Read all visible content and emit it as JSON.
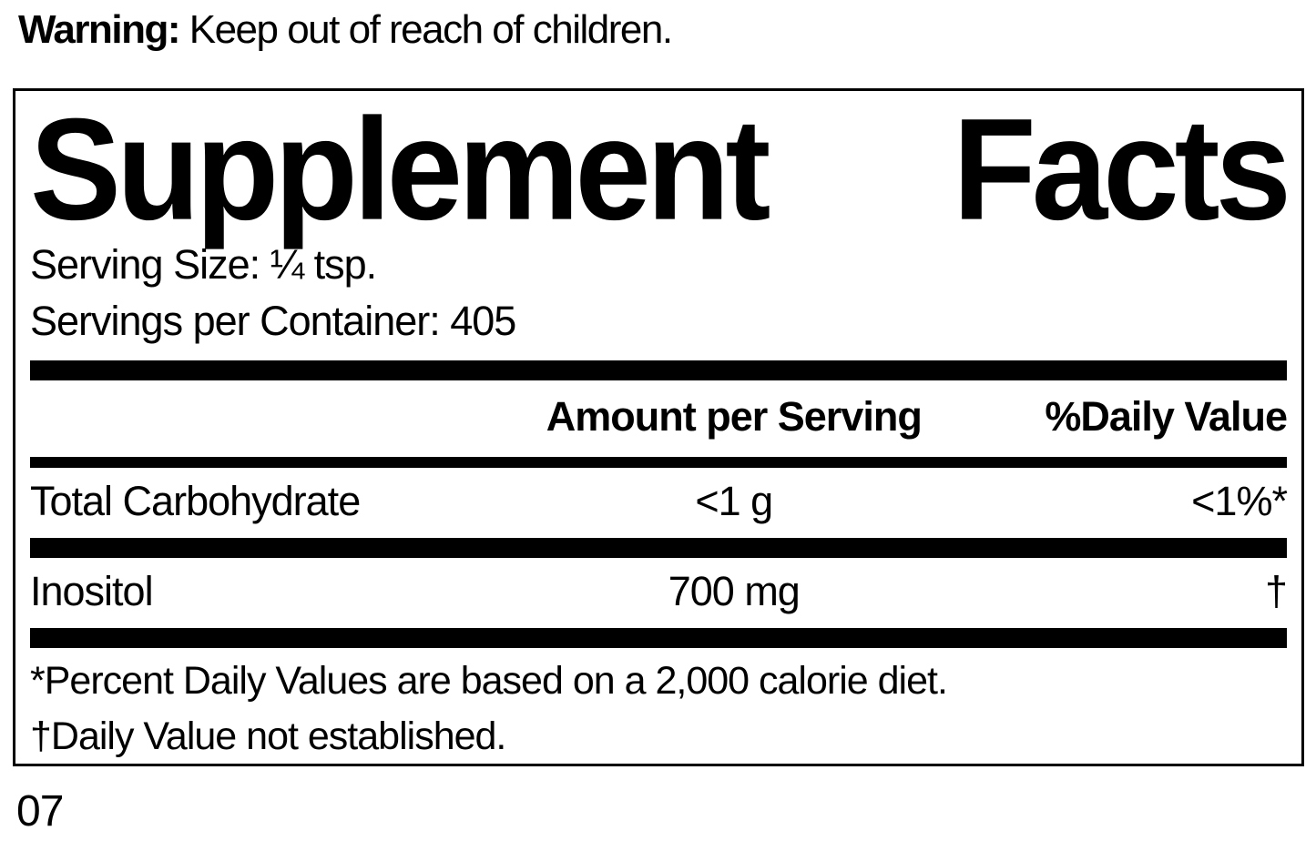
{
  "warning": {
    "label": "Warning:",
    "text": " Keep out of reach of children."
  },
  "panel": {
    "title_left": "Supplement",
    "title_right": "Facts",
    "serving_size_line": "Serving Size: ¼ tsp.",
    "servings_per_container_line": "Servings per Container: 405",
    "header": {
      "amount": "Amount per Serving",
      "daily_value": "%Daily Value"
    },
    "rows": [
      {
        "nutrient": "Total Carbohydrate",
        "amount": "<1 g",
        "daily_value": "<1%*"
      },
      {
        "nutrient": "Inositol",
        "amount": "700 mg",
        "daily_value": "†"
      }
    ],
    "footnotes": [
      "*Percent Daily Values are based on a 2,000 calorie diet.",
      "†Daily Value not established."
    ]
  },
  "footer": {
    "code": "07"
  },
  "colors": {
    "ink": "#000000",
    "background": "#ffffff"
  }
}
